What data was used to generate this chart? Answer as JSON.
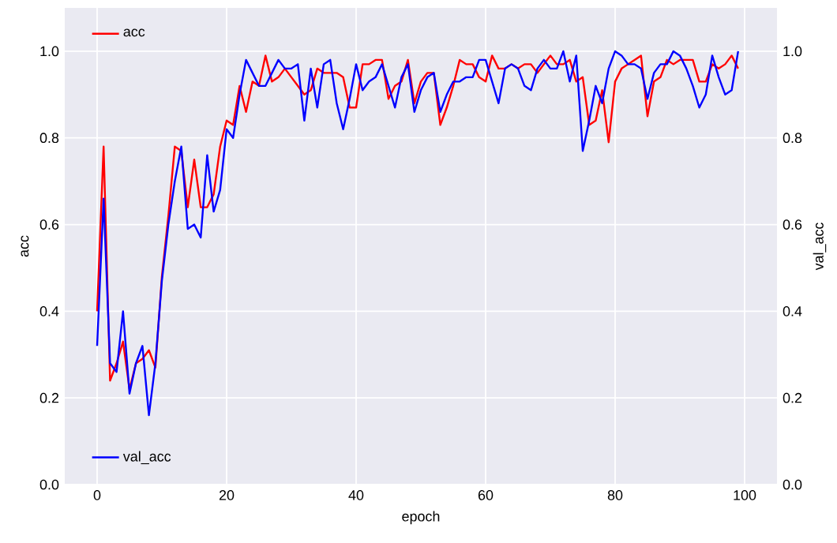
{
  "chart_data": {
    "type": "line",
    "xlabel": "epoch",
    "ylabel": "acc",
    "y2label": "val_acc",
    "x": [
      0,
      1,
      2,
      3,
      4,
      5,
      6,
      7,
      8,
      9,
      10,
      11,
      12,
      13,
      14,
      15,
      16,
      17,
      18,
      19,
      20,
      21,
      22,
      23,
      24,
      25,
      26,
      27,
      28,
      29,
      30,
      31,
      32,
      33,
      34,
      35,
      36,
      37,
      38,
      39,
      40,
      41,
      42,
      43,
      44,
      45,
      46,
      47,
      48,
      49,
      50,
      51,
      52,
      53,
      54,
      55,
      56,
      57,
      58,
      59,
      60,
      61,
      62,
      63,
      64,
      65,
      66,
      67,
      68,
      69,
      70,
      71,
      72,
      73,
      74,
      75,
      76,
      77,
      78,
      79,
      80,
      81,
      82,
      83,
      84,
      85,
      86,
      87,
      88,
      89,
      90,
      91,
      92,
      93,
      94,
      95,
      96,
      97,
      98,
      99
    ],
    "series": [
      {
        "name": "acc",
        "color": "#ff0000",
        "values": [
          0.4,
          0.78,
          0.24,
          0.28,
          0.33,
          0.22,
          0.28,
          0.29,
          0.31,
          0.27,
          0.48,
          0.62,
          0.78,
          0.77,
          0.64,
          0.75,
          0.64,
          0.64,
          0.67,
          0.78,
          0.84,
          0.83,
          0.92,
          0.86,
          0.93,
          0.92,
          0.99,
          0.93,
          0.94,
          0.96,
          0.94,
          0.92,
          0.9,
          0.91,
          0.96,
          0.95,
          0.95,
          0.95,
          0.94,
          0.87,
          0.87,
          0.97,
          0.97,
          0.98,
          0.98,
          0.89,
          0.92,
          0.93,
          0.98,
          0.88,
          0.93,
          0.95,
          0.95,
          0.83,
          0.87,
          0.92,
          0.98,
          0.97,
          0.97,
          0.94,
          0.93,
          0.99,
          0.96,
          0.96,
          0.97,
          0.96,
          0.97,
          0.97,
          0.95,
          0.97,
          0.99,
          0.97,
          0.97,
          0.98,
          0.93,
          0.94,
          0.83,
          0.84,
          0.91,
          0.79,
          0.93,
          0.96,
          0.97,
          0.98,
          0.99,
          0.85,
          0.93,
          0.94,
          0.98,
          0.97,
          0.98,
          0.98,
          0.98,
          0.93,
          0.93,
          0.97,
          0.96,
          0.97,
          0.99,
          0.96
        ]
      },
      {
        "name": "val_acc",
        "color": "#0000ff",
        "axis": "y2",
        "values": [
          0.32,
          0.66,
          0.28,
          0.26,
          0.4,
          0.21,
          0.28,
          0.32,
          0.16,
          0.28,
          0.47,
          0.6,
          0.7,
          0.78,
          0.59,
          0.6,
          0.57,
          0.76,
          0.63,
          0.68,
          0.82,
          0.8,
          0.9,
          0.98,
          0.95,
          0.92,
          0.92,
          0.95,
          0.98,
          0.96,
          0.96,
          0.97,
          0.84,
          0.96,
          0.87,
          0.97,
          0.98,
          0.88,
          0.82,
          0.89,
          0.97,
          0.91,
          0.93,
          0.94,
          0.97,
          0.92,
          0.87,
          0.94,
          0.97,
          0.86,
          0.91,
          0.94,
          0.95,
          0.86,
          0.9,
          0.93,
          0.93,
          0.94,
          0.94,
          0.98,
          0.98,
          0.93,
          0.88,
          0.96,
          0.97,
          0.96,
          0.92,
          0.91,
          0.96,
          0.98,
          0.96,
          0.96,
          1.0,
          0.93,
          0.99,
          0.77,
          0.84,
          0.92,
          0.88,
          0.96,
          1.0,
          0.99,
          0.97,
          0.97,
          0.96,
          0.89,
          0.95,
          0.97,
          0.97,
          1.0,
          0.99,
          0.96,
          0.92,
          0.87,
          0.9,
          0.99,
          0.94,
          0.9,
          0.91,
          1.0
        ]
      }
    ],
    "xlim": [
      -5,
      105
    ],
    "xticks": [
      0,
      20,
      40,
      60,
      80,
      100
    ],
    "ylim": [
      0,
      1.1
    ],
    "yticks": [
      {
        "value": 0,
        "label": "0.0"
      },
      0.2,
      0.4,
      0.6,
      0.8,
      {
        "value": 1,
        "label": "1.0"
      }
    ],
    "y2lim": [
      0,
      1.1
    ],
    "y2ticks": [
      {
        "value": 0,
        "label": "0.0"
      },
      0.2,
      0.4,
      0.6,
      0.8,
      {
        "value": 1,
        "label": "1.0"
      }
    ],
    "grid": true,
    "legend": "left"
  }
}
